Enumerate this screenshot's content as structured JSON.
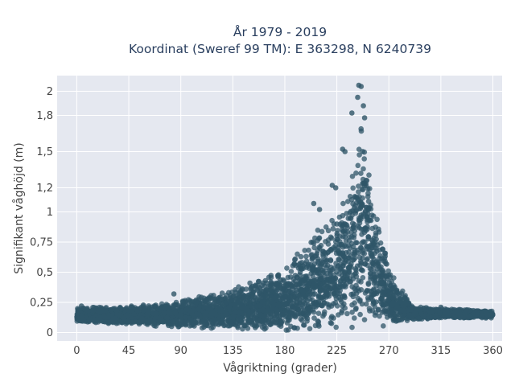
{
  "chart_data": {
    "type": "scatter",
    "title_line1": "År 1979 - 2019",
    "title_line2": "Koordinat (Sweref 99 TM): E 363298, N 6240739",
    "xlabel": "Vågriktning (grader)",
    "ylabel": "Signifikant våghöjd (m)",
    "xlim": [
      -17,
      368
    ],
    "ylim": [
      -0.07,
      2.13
    ],
    "xticks": [
      0,
      45,
      90,
      135,
      180,
      225,
      270,
      315,
      360
    ],
    "xtick_labels": [
      "0",
      "45",
      "90",
      "135",
      "180",
      "225",
      "270",
      "315",
      "360"
    ],
    "yticks": [
      0,
      0.25,
      0.5,
      0.75,
      1,
      1.2,
      1.5,
      1.8,
      2
    ],
    "ytick_labels": [
      "0",
      "0,25",
      "0,5",
      "0,75",
      "1",
      "1,2",
      "1,5",
      "1,8",
      "2"
    ],
    "grid": true,
    "legend": "none",
    "marker_color": "#2f5568",
    "plot_background": "#e5e8f0",
    "envelope": {
      "direction": [
        0,
        45,
        90,
        135,
        180,
        200,
        225,
        240,
        245,
        250,
        255,
        270,
        290,
        315,
        360
      ],
      "max_height": [
        0.21,
        0.22,
        0.28,
        0.36,
        0.55,
        0.8,
        1.05,
        1.5,
        2.05,
        1.75,
        1.3,
        0.55,
        0.22,
        0.2,
        0.18
      ],
      "min_height": [
        0.08,
        0.06,
        0.04,
        0.02,
        0.01,
        0.01,
        0.01,
        0.02,
        0.03,
        0.03,
        0.04,
        0.05,
        0.1,
        0.12,
        0.12
      ]
    },
    "highlight_points": [
      {
        "x": 244,
        "y": 2.05
      },
      {
        "x": 246,
        "y": 2.04
      },
      {
        "x": 243,
        "y": 1.95
      },
      {
        "x": 248,
        "y": 1.88
      },
      {
        "x": 238,
        "y": 1.82
      },
      {
        "x": 249,
        "y": 1.78
      },
      {
        "x": 230,
        "y": 1.52
      },
      {
        "x": 232,
        "y": 1.5
      },
      {
        "x": 221,
        "y": 1.22
      },
      {
        "x": 224,
        "y": 1.2
      },
      {
        "x": 205,
        "y": 1.07
      },
      {
        "x": 210,
        "y": 1.02
      },
      {
        "x": 84,
        "y": 0.32
      },
      {
        "x": 55,
        "y": 0.2
      },
      {
        "x": 4,
        "y": 0.22
      },
      {
        "x": 315,
        "y": 0.21
      }
    ]
  }
}
